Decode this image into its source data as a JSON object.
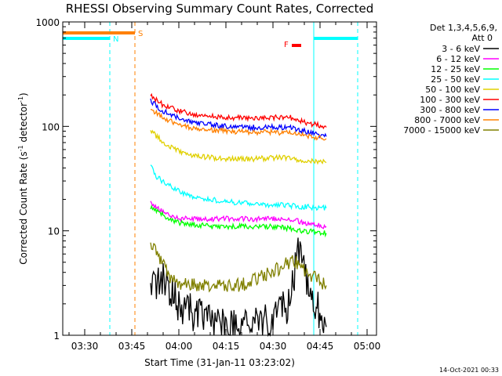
{
  "chart_data": {
    "type": "line",
    "title": "RHESSI Observing Summary Count Rates, Corrected",
    "xlabel": "Start Time (31-Jan-11 03:23:02)",
    "ylabel": "Corrected Count Rate (s",
    "ylabel_sup1": "-1",
    "ylabel_mid": " detector",
    "ylabel_sup2": "-1",
    "ylabel_end": ")",
    "y_scale": "log",
    "ylim": [
      1,
      1000
    ],
    "xlim": [
      "03:23:00",
      "05:03:00"
    ],
    "x_ticks": [
      "03:30",
      "03:45",
      "04:00",
      "04:15",
      "04:30",
      "04:45",
      "05:00"
    ],
    "y_ticks": [
      "1",
      "10",
      "100",
      "1000"
    ],
    "legend_header": [
      "Det 1,3,4,5,6,9,",
      "Att 0"
    ],
    "legend_placement": "right",
    "series": [
      {
        "name": "3 - 6 keV",
        "color": "#000000",
        "x": [
          "03:51",
          "03:55",
          "04:00",
          "04:10",
          "04:20",
          "04:30",
          "04:35",
          "04:38",
          "04:42",
          "04:47"
        ],
        "y": [
          3.0,
          3.3,
          2.0,
          1.3,
          1.2,
          1.4,
          2.0,
          6.0,
          2.5,
          1.2
        ]
      },
      {
        "name": "6 - 12 keV",
        "color": "#ff00ff",
        "x": [
          "03:51",
          "03:55",
          "04:00",
          "04:10",
          "04:20",
          "04:30",
          "04:35",
          "04:40",
          "04:47"
        ],
        "y": [
          19,
          15,
          13,
          13,
          13,
          13,
          13,
          12,
          11
        ]
      },
      {
        "name": "12 - 25 keV",
        "color": "#00ff00",
        "x": [
          "03:51",
          "03:55",
          "04:00",
          "04:10",
          "04:20",
          "04:30",
          "04:35",
          "04:40",
          "04:47"
        ],
        "y": [
          17,
          14,
          12,
          11,
          11,
          11,
          10.5,
          10,
          9.5
        ]
      },
      {
        "name": "25 - 50 keV",
        "color": "#00ffff",
        "x": [
          "03:51",
          "03:53",
          "03:56",
          "04:00",
          "04:05",
          "04:15",
          "04:25",
          "04:35",
          "04:40",
          "04:47"
        ],
        "y": [
          42,
          33,
          28,
          24,
          21,
          19,
          18,
          17.5,
          17,
          16.5
        ]
      },
      {
        "name": "50 - 100 keV",
        "color": "#e0d000",
        "x": [
          "03:51",
          "03:54",
          "03:57",
          "04:00",
          "04:05",
          "04:15",
          "04:25",
          "04:30",
          "04:35",
          "04:40",
          "04:47"
        ],
        "y": [
          92,
          75,
          65,
          58,
          52,
          49,
          49,
          50,
          50,
          47,
          45
        ]
      },
      {
        "name": "100 - 300 keV",
        "color": "#ff0000",
        "x": [
          "03:51",
          "03:55",
          "04:00",
          "04:05",
          "04:15",
          "04:25",
          "04:30",
          "04:35",
          "04:40",
          "04:47"
        ],
        "y": [
          195,
          160,
          140,
          130,
          122,
          120,
          122,
          123,
          110,
          98
        ]
      },
      {
        "name": "300 - 800 keV",
        "color": "#0000ff",
        "x": [
          "03:51",
          "03:55",
          "04:00",
          "04:05",
          "04:15",
          "04:25",
          "04:30",
          "04:35",
          "04:40",
          "04:47"
        ],
        "y": [
          175,
          140,
          120,
          108,
          100,
          98,
          98,
          98,
          90,
          80
        ]
      },
      {
        "name": "800 - 7000 keV",
        "color": "#ff8000",
        "x": [
          "03:51",
          "03:55",
          "04:00",
          "04:05",
          "04:15",
          "04:25",
          "04:30",
          "04:35",
          "04:40",
          "04:47"
        ],
        "y": [
          145,
          120,
          105,
          95,
          90,
          88,
          88,
          86,
          82,
          76
        ]
      },
      {
        "name": "7000 - 15000 keV",
        "color": "#808000",
        "x": [
          "03:51",
          "03:52",
          "03:54",
          "03:56",
          "04:00",
          "04:10",
          "04:20",
          "04:30",
          "04:35",
          "04:38",
          "04:41",
          "04:47"
        ],
        "y": [
          8.0,
          7.0,
          5.5,
          4.0,
          3.0,
          3.0,
          3.0,
          4.0,
          5.0,
          5.0,
          4.0,
          3.0
        ]
      }
    ],
    "flags": [
      {
        "label": "N",
        "color": "#00ffff",
        "start": "03:23",
        "end": "03:38",
        "start2": "04:43",
        "end2": "04:57"
      },
      {
        "label": "S",
        "color": "#ff8000",
        "start": "03:23",
        "end": "03:46"
      },
      {
        "label": "F",
        "color": "#ff0000",
        "start": "04:36",
        "end": "04:39"
      }
    ],
    "vertical_lines": [
      {
        "x": "03:23",
        "color": "#00ffff",
        "style": "solid"
      },
      {
        "x": "03:38",
        "color": "#00ffff",
        "style": "dashed"
      },
      {
        "x": "03:46",
        "color": "#ff8000",
        "style": "dashed"
      },
      {
        "x": "04:43",
        "color": "#00ffff",
        "style": "solid"
      },
      {
        "x": "04:57",
        "color": "#00ffff",
        "style": "dashed"
      }
    ],
    "footer": "14-Oct-2021 00:33"
  }
}
